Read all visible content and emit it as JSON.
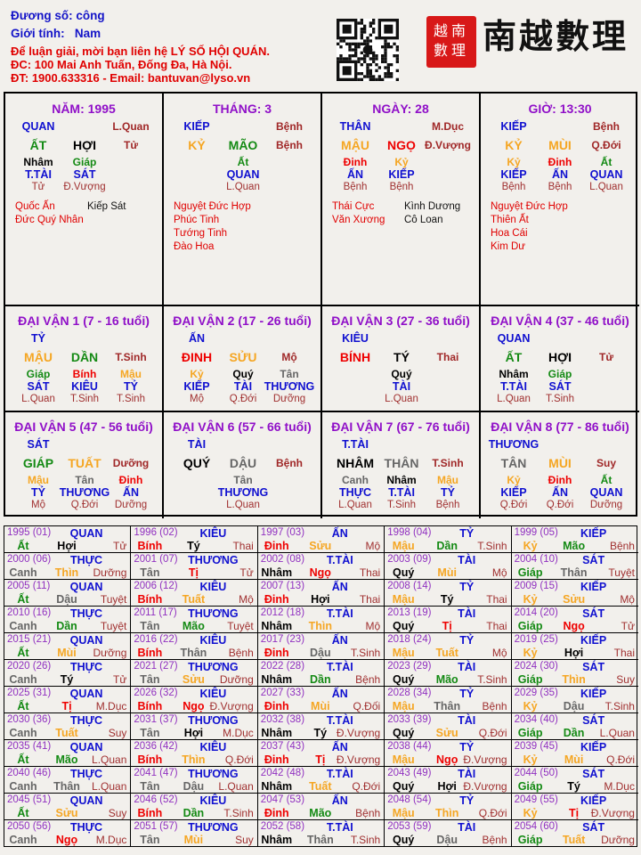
{
  "header": {
    "duong_so": "Đương số: công",
    "gioi_tinh_label": "Giới tính:",
    "gioi_tinh": "Nam",
    "contact_1": "Để luận giải, mời bạn liên hệ LÝ SỐ HỘI QUÁN.",
    "contact_2": "ĐC: 100 Mai Anh Tuấn, Đống Đa, Hà Nội.",
    "contact_3": "ĐT: 1900.633316 - Email: bantuvan@lyso.vn",
    "logo_text": "南越數理",
    "seal_text": "越南數理"
  },
  "colors": {
    "title": "#9010c8",
    "god": "#1010d0",
    "stage": "#a02828",
    "star_good": "#e00000",
    "star_bad": "#111111",
    "giáp": "#148a14",
    "ất": "#148a14",
    "dần": "#148a14",
    "mão": "#148a14",
    "bính": "#ee0000",
    "đinh": "#ee0000",
    "tị": "#ee0000",
    "ngọ": "#ee0000",
    "mậu": "#f5a623",
    "kỷ": "#f5a623",
    "thìn": "#f5a623",
    "tuất": "#f5a623",
    "sửu": "#f5a623",
    "mùi": "#f5a623",
    "canh": "#666666",
    "tân": "#666666",
    "thân": "#666666",
    "dậu": "#666666",
    "nhâm": "#000000",
    "quý": "#000000",
    "tý": "#000000",
    "hợi": "#000000"
  },
  "pillars": [
    {
      "title": "NĂM: 1995",
      "god": "QUAN",
      "stage_top": "L.Quan",
      "stem": "ẤT",
      "branch": "HỢI",
      "stage": "Tử",
      "hidden": [
        {
          "stem": "Nhâm",
          "god": "T.TÀI",
          "stage": "Tử"
        },
        {
          "stem": "Giáp",
          "god": "SÁT",
          "stage": "Đ.Vượng"
        },
        null
      ],
      "stars_good": [
        "Quốc Ấn",
        "Đức Quý Nhân"
      ],
      "stars_bad": [
        "Kiếp Sát"
      ]
    },
    {
      "title": "THÁNG: 3",
      "god": "KIẾP",
      "stage_top": "Bệnh",
      "stem": "KỶ",
      "branch": "MÃO",
      "stage": "Bệnh",
      "hidden": [
        null,
        {
          "stem": "Ất",
          "god": "QUAN",
          "stage": "L.Quan"
        },
        null
      ],
      "stars_good": [
        "Nguyệt Đức Hợp",
        "Phúc Tinh",
        "Tướng Tinh",
        "Đào Hoa"
      ],
      "stars_bad": []
    },
    {
      "title": "NGÀY: 28",
      "god": "THÂN",
      "stage_top": "M.Dục",
      "stem": "MẬU",
      "branch": "NGỌ",
      "stage": "Đ.Vượng",
      "hidden": [
        {
          "stem": "Đinh",
          "god": "ẤN",
          "stage": "Bệnh"
        },
        {
          "stem": "Kỷ",
          "god": "KIẾP",
          "stage": "Bệnh"
        },
        null
      ],
      "stars_good": [
        "Thái Cực",
        "Văn Xương"
      ],
      "stars_bad": [
        "Kình Dương",
        "Cô Loan"
      ]
    },
    {
      "title": "GIỜ: 13:30",
      "god": "KIẾP",
      "stage_top": "Bệnh",
      "stem": "KỶ",
      "branch": "MÙI",
      "stage": "Q.Đới",
      "hidden": [
        {
          "stem": "Kỷ",
          "god": "KIẾP",
          "stage": "Bệnh"
        },
        {
          "stem": "Đinh",
          "god": "ẤN",
          "stage": "Bệnh"
        },
        {
          "stem": "Ất",
          "god": "QUAN",
          "stage": "L.Quan"
        }
      ],
      "stars_good": [
        "Nguyệt Đức Hợp",
        "Thiên Ất",
        "Hoa Cái",
        "Kim Dư"
      ],
      "stars_bad": []
    }
  ],
  "dai_van": [
    {
      "title": "ĐẠI VẬN 1 (7 - 16 tuổi)",
      "god": "TỶ",
      "stem": "MẬU",
      "branch": "DẦN",
      "stage": "T.Sinh",
      "hidden": [
        {
          "stem": "Giáp",
          "god": "SÁT",
          "stage": "L.Quan"
        },
        {
          "stem": "Bính",
          "god": "KIÊU",
          "stage": "T.Sinh"
        },
        {
          "stem": "Mậu",
          "god": "TỶ",
          "stage": "T.Sinh"
        }
      ]
    },
    {
      "title": "ĐẠI VẬN 2 (17 - 26 tuổi)",
      "god": "ẤN",
      "stem": "ĐINH",
      "branch": "SỬU",
      "stage": "Mộ",
      "hidden": [
        {
          "stem": "Kỷ",
          "god": "KIẾP",
          "stage": "Mộ"
        },
        {
          "stem": "Quý",
          "god": "TÀI",
          "stage": "Q.Đới"
        },
        {
          "stem": "Tân",
          "god": "THƯƠNG",
          "stage": "Dưỡng"
        }
      ]
    },
    {
      "title": "ĐẠI VẬN 3 (27 - 36 tuổi)",
      "god": "KIÊU",
      "stem": "BÍNH",
      "branch": "TÝ",
      "stage": "Thai",
      "hidden": [
        null,
        {
          "stem": "Quý",
          "god": "TÀI",
          "stage": "L.Quan"
        },
        null
      ]
    },
    {
      "title": "ĐẠI VẬN 4 (37 - 46 tuổi)",
      "god": "QUAN",
      "stem": "ẤT",
      "branch": "HỢI",
      "stage": "Tử",
      "hidden": [
        {
          "stem": "Nhâm",
          "god": "T.TÀI",
          "stage": "L.Quan"
        },
        {
          "stem": "Giáp",
          "god": "SÁT",
          "stage": "T.Sinh"
        },
        null
      ]
    },
    {
      "title": "ĐẠI VẬN 5 (47 - 56 tuổi)",
      "god": "SÁT",
      "stem": "GIÁP",
      "branch": "TUẤT",
      "stage": "Dưỡng",
      "hidden": [
        {
          "stem": "Mậu",
          "god": "TỶ",
          "stage": "Mộ"
        },
        {
          "stem": "Tân",
          "god": "THƯƠNG",
          "stage": "Q.Đới"
        },
        {
          "stem": "Đinh",
          "god": "ẤN",
          "stage": "Dưỡng"
        }
      ]
    },
    {
      "title": "ĐẠI VẬN 6 (57 - 66 tuổi)",
      "god": "TÀI",
      "stem": "QUÝ",
      "branch": "DẬU",
      "stage": "Bệnh",
      "hidden": [
        null,
        {
          "stem": "Tân",
          "god": "THƯƠNG",
          "stage": "L.Quan"
        },
        null
      ]
    },
    {
      "title": "ĐẠI VẬN 7 (67 - 76 tuổi)",
      "god": "T.TÀI",
      "stem": "NHÂM",
      "branch": "THÂN",
      "stage": "T.Sinh",
      "hidden": [
        {
          "stem": "Canh",
          "god": "THỰC",
          "stage": "L.Quan"
        },
        {
          "stem": "Nhâm",
          "god": "T.TÀI",
          "stage": "T.Sinh"
        },
        {
          "stem": "Mậu",
          "god": "TỶ",
          "stage": "Bệnh"
        }
      ]
    },
    {
      "title": "ĐẠI VẬN 8 (77 - 86 tuổi)",
      "god": "THƯƠNG",
      "stem": "TÂN",
      "branch": "MÙI",
      "stage": "Suy",
      "hidden": [
        {
          "stem": "Kỷ",
          "god": "KIẾP",
          "stage": "Q.Đới"
        },
        {
          "stem": "Đinh",
          "god": "ẤN",
          "stage": "Q.Đới"
        },
        {
          "stem": "Ất",
          "god": "QUAN",
          "stage": "Dưỡng"
        }
      ]
    }
  ],
  "years": [
    [
      "1995 (01)",
      "QUAN",
      "Ất",
      "Hợi",
      "Tử"
    ],
    [
      "1996 (02)",
      "KIÊU",
      "Bính",
      "Tý",
      "Thai"
    ],
    [
      "1997 (03)",
      "ẤN",
      "Đinh",
      "Sửu",
      "Mộ"
    ],
    [
      "1998 (04)",
      "TỶ",
      "Mậu",
      "Dần",
      "T.Sinh"
    ],
    [
      "1999 (05)",
      "KIẾP",
      "Kỷ",
      "Mão",
      "Bệnh"
    ],
    [
      "2000 (06)",
      "THỰC",
      "Canh",
      "Thìn",
      "Dưỡng"
    ],
    [
      "2001 (07)",
      "THƯƠNG",
      "Tân",
      "Tị",
      "Tử"
    ],
    [
      "2002 (08)",
      "T.TÀI",
      "Nhâm",
      "Ngọ",
      "Thai"
    ],
    [
      "2003 (09)",
      "TÀI",
      "Quý",
      "Mùi",
      "Mộ"
    ],
    [
      "2004 (10)",
      "SÁT",
      "Giáp",
      "Thân",
      "Tuyệt"
    ],
    [
      "2005 (11)",
      "QUAN",
      "Ất",
      "Dậu",
      "Tuyệt"
    ],
    [
      "2006 (12)",
      "KIÊU",
      "Bính",
      "Tuất",
      "Mộ"
    ],
    [
      "2007 (13)",
      "ẤN",
      "Đinh",
      "Hợi",
      "Thai"
    ],
    [
      "2008 (14)",
      "TỶ",
      "Mậu",
      "Tý",
      "Thai"
    ],
    [
      "2009 (15)",
      "KIẾP",
      "Kỷ",
      "Sửu",
      "Mộ"
    ],
    [
      "2010 (16)",
      "THỰC",
      "Canh",
      "Dần",
      "Tuyệt"
    ],
    [
      "2011 (17)",
      "THƯƠNG",
      "Tân",
      "Mão",
      "Tuyệt"
    ],
    [
      "2012 (18)",
      "T.TÀI",
      "Nhâm",
      "Thìn",
      "Mộ"
    ],
    [
      "2013 (19)",
      "TÀI",
      "Quý",
      "Tị",
      "Thai"
    ],
    [
      "2014 (20)",
      "SÁT",
      "Giáp",
      "Ngọ",
      "Tử"
    ],
    [
      "2015 (21)",
      "QUAN",
      "Ất",
      "Mùi",
      "Dưỡng"
    ],
    [
      "2016 (22)",
      "KIÊU",
      "Bính",
      "Thân",
      "Bệnh"
    ],
    [
      "2017 (23)",
      "ẤN",
      "Đinh",
      "Dậu",
      "T.Sinh"
    ],
    [
      "2018 (24)",
      "TỶ",
      "Mậu",
      "Tuất",
      "Mộ"
    ],
    [
      "2019 (25)",
      "KIẾP",
      "Kỷ",
      "Hợi",
      "Thai"
    ],
    [
      "2020 (26)",
      "THỰC",
      "Canh",
      "Tý",
      "Tử"
    ],
    [
      "2021 (27)",
      "THƯƠNG",
      "Tân",
      "Sửu",
      "Dưỡng"
    ],
    [
      "2022 (28)",
      "T.TÀI",
      "Nhâm",
      "Dần",
      "Bệnh"
    ],
    [
      "2023 (29)",
      "TÀI",
      "Quý",
      "Mão",
      "T.Sinh"
    ],
    [
      "2024 (30)",
      "SÁT",
      "Giáp",
      "Thìn",
      "Suy"
    ],
    [
      "2025 (31)",
      "QUAN",
      "Ất",
      "Tị",
      "M.Dục"
    ],
    [
      "2026 (32)",
      "KIÊU",
      "Bính",
      "Ngọ",
      "Đ.Vượng"
    ],
    [
      "2027 (33)",
      "ẤN",
      "Đinh",
      "Mùi",
      "Q.Đối"
    ],
    [
      "2028 (34)",
      "TỶ",
      "Mậu",
      "Thân",
      "Bệnh"
    ],
    [
      "2029 (35)",
      "KIẾP",
      "Kỷ",
      "Dậu",
      "T.Sinh"
    ],
    [
      "2030 (36)",
      "THỰC",
      "Canh",
      "Tuất",
      "Suy"
    ],
    [
      "2031 (37)",
      "THƯƠNG",
      "Tân",
      "Hợi",
      "M.Dục"
    ],
    [
      "2032 (38)",
      "T.TÀI",
      "Nhâm",
      "Tý",
      "Đ.Vượng"
    ],
    [
      "2033 (39)",
      "TÀI",
      "Quý",
      "Sửu",
      "Q.Đới"
    ],
    [
      "2034 (40)",
      "SÁT",
      "Giáp",
      "Dần",
      "L.Quan"
    ],
    [
      "2035 (41)",
      "QUAN",
      "Ất",
      "Mão",
      "L.Quan"
    ],
    [
      "2036 (42)",
      "KIÊU",
      "Bính",
      "Thìn",
      "Q.Đới"
    ],
    [
      "2037 (43)",
      "ẤN",
      "Đinh",
      "Tị",
      "Đ.Vượng"
    ],
    [
      "2038 (44)",
      "TỶ",
      "Mậu",
      "Ngọ",
      "Đ.Vượng"
    ],
    [
      "2039 (45)",
      "KIẾP",
      "Kỷ",
      "Mùi",
      "Q.Đới"
    ],
    [
      "2040 (46)",
      "THỰC",
      "Canh",
      "Thân",
      "L.Quan"
    ],
    [
      "2041 (47)",
      "THƯƠNG",
      "Tân",
      "Dậu",
      "L.Quan"
    ],
    [
      "2042 (48)",
      "T.TÀI",
      "Nhâm",
      "Tuất",
      "Q.Đới"
    ],
    [
      "2043 (49)",
      "TÀI",
      "Quý",
      "Hợi",
      "Đ.Vượng"
    ],
    [
      "2044 (50)",
      "SÁT",
      "Giáp",
      "Tý",
      "M.Dục"
    ],
    [
      "2045 (51)",
      "QUAN",
      "Ất",
      "Sửu",
      "Suy"
    ],
    [
      "2046 (52)",
      "KIÊU",
      "Bính",
      "Dần",
      "T.Sinh"
    ],
    [
      "2047 (53)",
      "ẤN",
      "Đinh",
      "Mão",
      "Bệnh"
    ],
    [
      "2048 (54)",
      "TỶ",
      "Mậu",
      "Thìn",
      "Q.Đới"
    ],
    [
      "2049 (55)",
      "KIẾP",
      "Kỷ",
      "Tị",
      "Đ.Vượng"
    ],
    [
      "2050 (56)",
      "THỰC",
      "Canh",
      "Ngọ",
      "M.Dục"
    ],
    [
      "2051 (57)",
      "THƯƠNG",
      "Tân",
      "Mùi",
      "Suy"
    ],
    [
      "2052 (58)",
      "T.TÀI",
      "Nhâm",
      "Thân",
      "T.Sinh"
    ],
    [
      "2053 (59)",
      "TÀI",
      "Quý",
      "Dậu",
      "Bệnh"
    ],
    [
      "2054 (60)",
      "SÁT",
      "Giáp",
      "Tuất",
      "Dưỡng"
    ]
  ]
}
